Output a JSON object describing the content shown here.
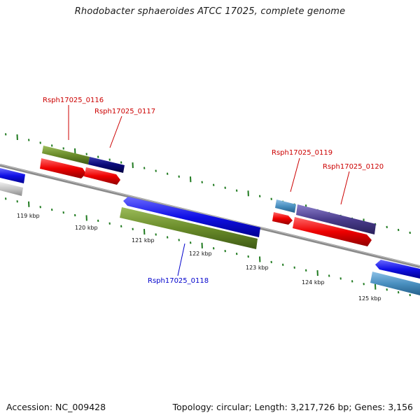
{
  "title": "Rhodobacter sphaeroides ATCC 17025, complete genome",
  "footer": {
    "accession": "Accession: NC_009428",
    "summary": "Topology: circular; Length: 3,217,726 bp; Genes: 3,156"
  },
  "scale_labels": [
    "119 kbp",
    "120 kbp",
    "121 kbp",
    "122 kbp",
    "123 kbp",
    "124 kbp",
    "125 kbp"
  ],
  "gene_labels": [
    {
      "text": "Rsph17025_0116",
      "color": "#cc0000"
    },
    {
      "text": "Rsph17025_0117",
      "color": "#cc0000"
    },
    {
      "text": "Rsph17025_0118",
      "color": "#0000cc"
    },
    {
      "text": "Rsph17025_0119",
      "color": "#cc0000"
    },
    {
      "text": "Rsph17025_0120",
      "color": "#cc0000"
    }
  ],
  "colors": {
    "backbone": "#7a7a7a",
    "tick": "#1f7a1f",
    "forward_gene": "#1010e6",
    "reverse_gene": "#e60000",
    "olive_feature": "#6a8c2a",
    "navy_feature": "#0a0a78",
    "slate_feature": "#4a90c0",
    "purple_feature": "#4a3c8c",
    "grey_feature": "#c0c0c0"
  }
}
